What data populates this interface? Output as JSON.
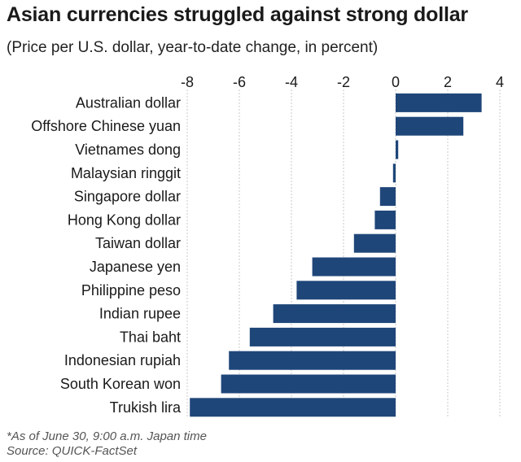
{
  "chart_data": {
    "type": "bar",
    "orientation": "horizontal",
    "title": "Asian currencies struggled against strong dollar",
    "subtitle": "(Price per U.S. dollar, year-to-date change, in percent)",
    "categories": [
      "Australian dollar",
      "Offshore Chinese yuan",
      "Vietnames dong",
      "Malaysian ringgit",
      "Singapore dollar",
      "Hong Kong dollar",
      "Taiwan dollar",
      "Japanese yen",
      "Philippine peso",
      "Indian rupee",
      "Thai baht",
      "Indonesian rupiah",
      "South Korean won",
      "Trukish lira"
    ],
    "values": [
      3.3,
      2.6,
      0.1,
      -0.1,
      -0.6,
      -0.8,
      -1.6,
      -3.2,
      -3.8,
      -4.7,
      -5.6,
      -6.4,
      -6.7,
      -7.9
    ],
    "xlim": [
      -8,
      4
    ],
    "xticks": [
      "-8",
      "-6",
      "-4",
      "-2",
      "0",
      "2",
      "4"
    ],
    "axis_position": "top",
    "grid": true,
    "bar_color": "#1f4679",
    "notes": [
      "*As of June 30, 9:00 a.m. Japan time",
      "Source: QUICK-FactSet"
    ]
  }
}
